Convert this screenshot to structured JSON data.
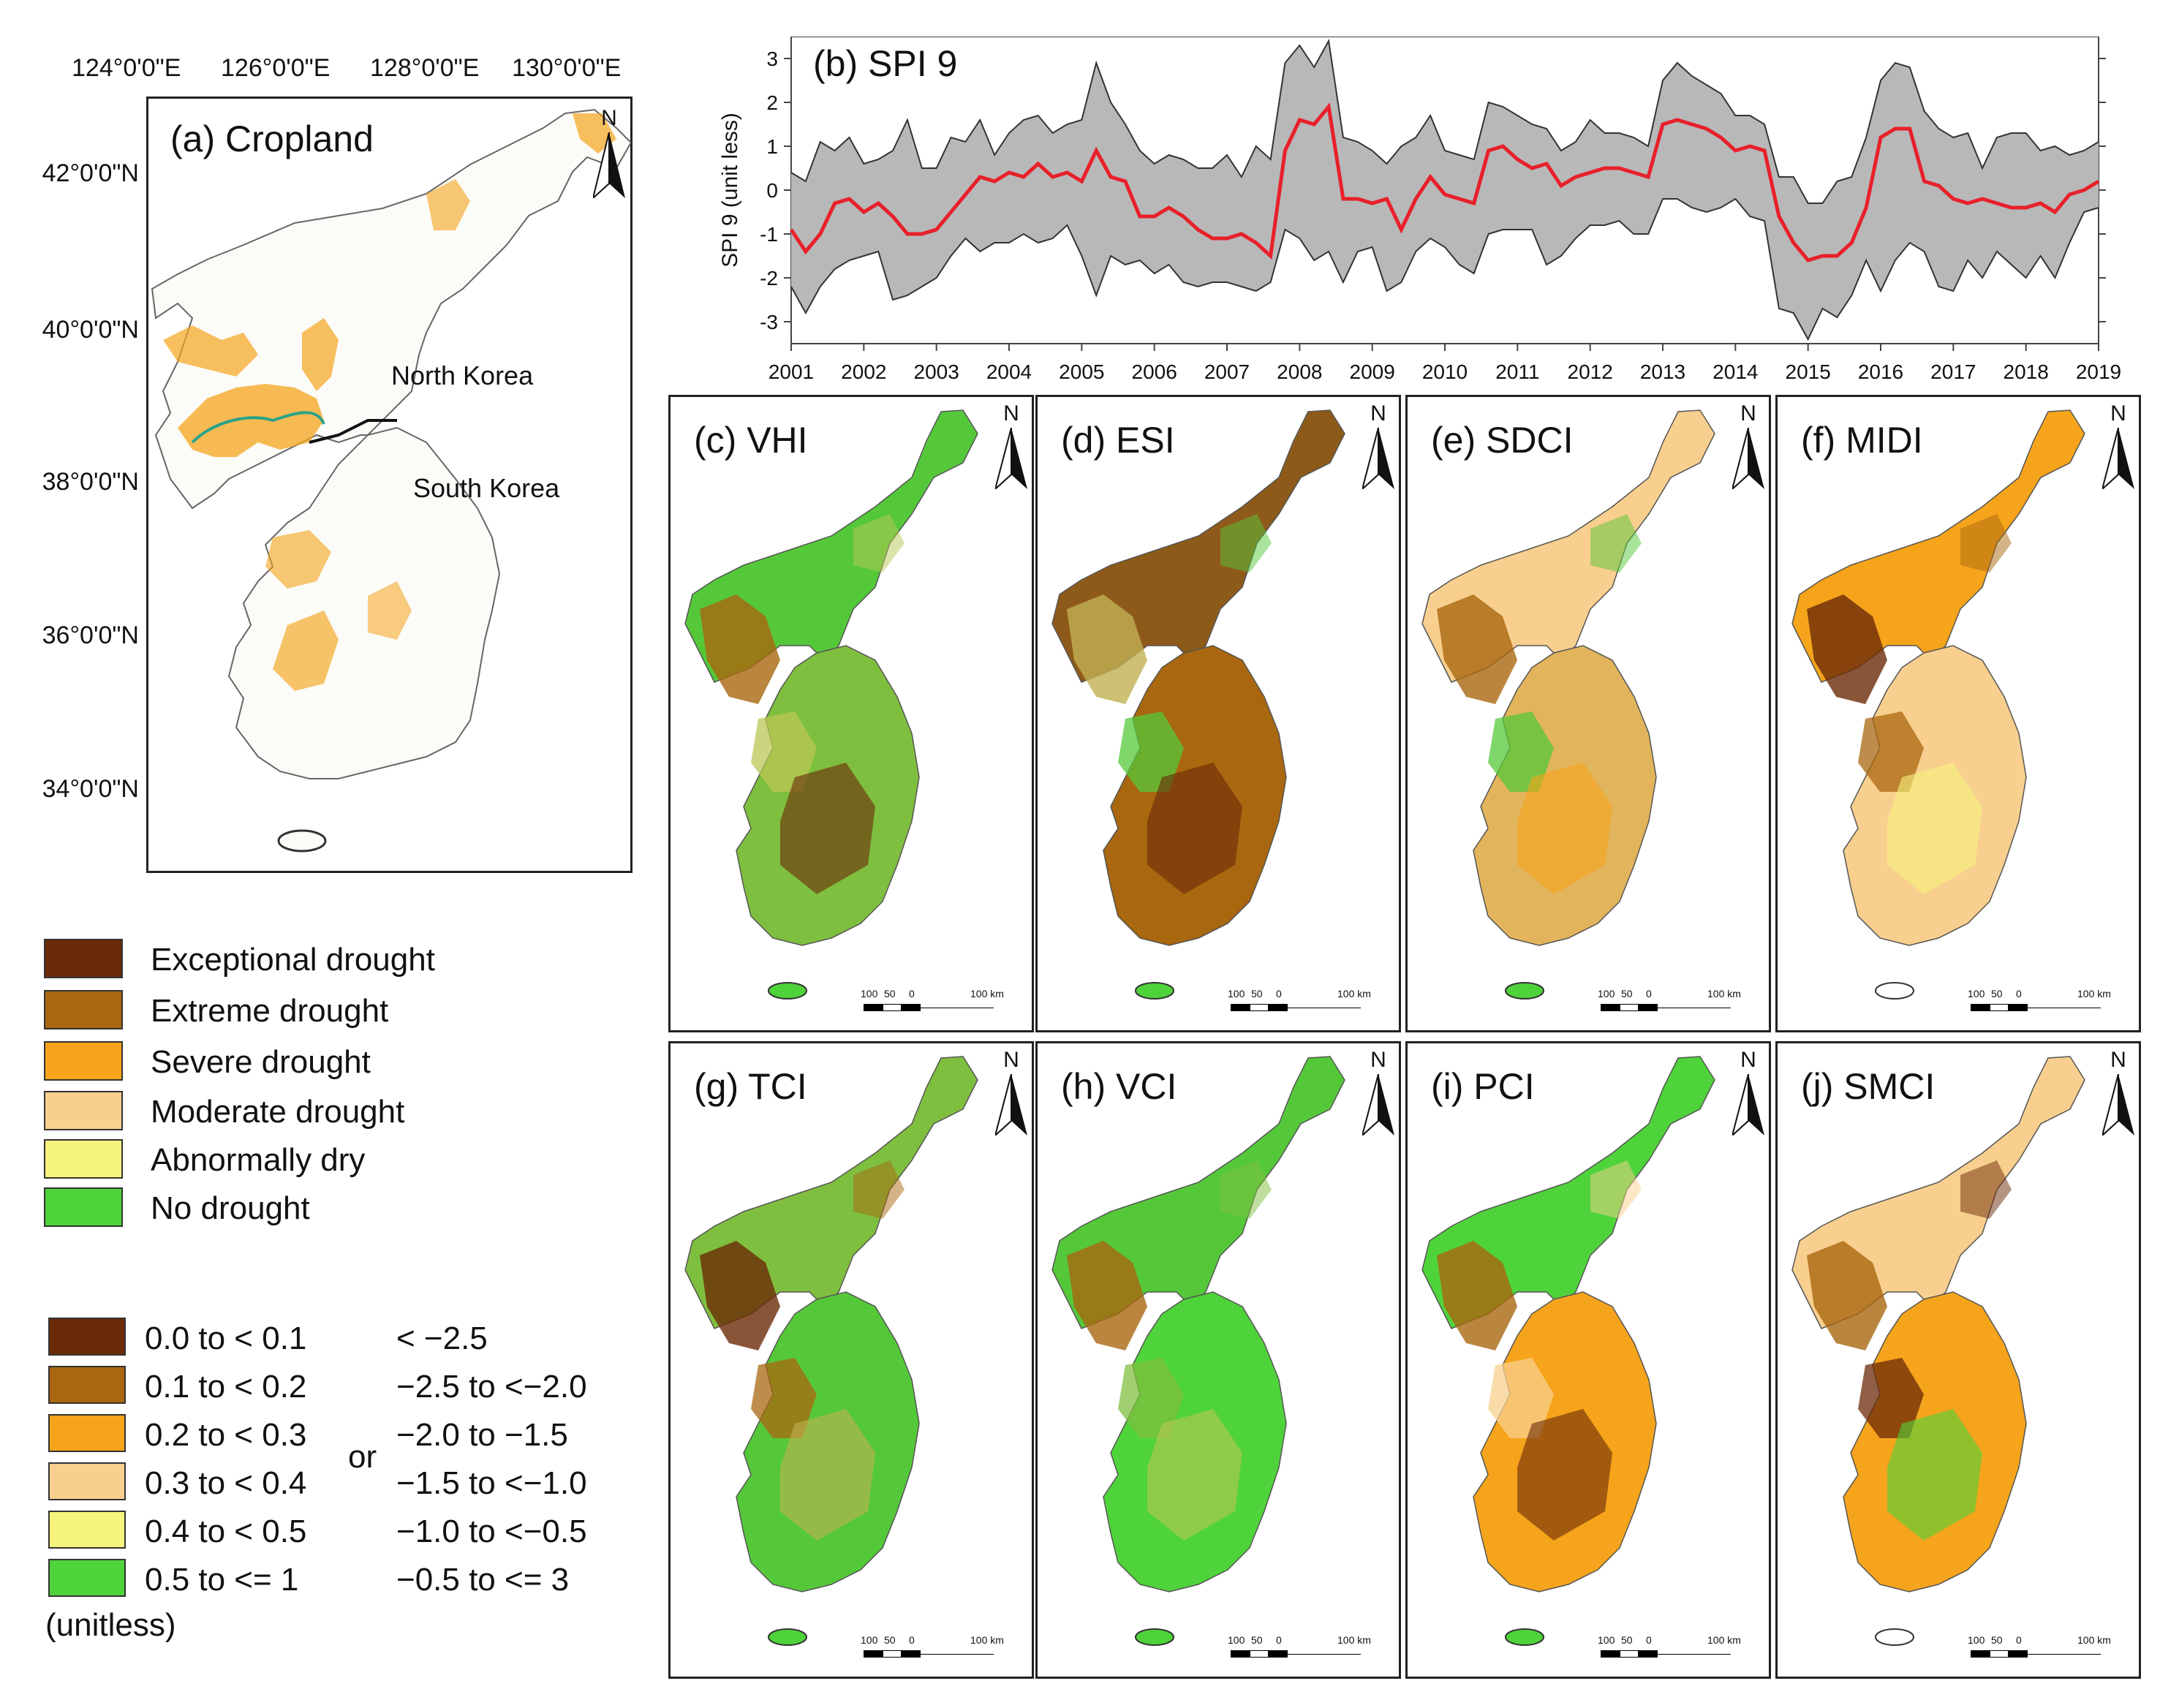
{
  "panel_a": {
    "title": "(a) Cropland",
    "lon_labels": [
      "124°0'0\"E",
      "126°0'0\"E",
      "128°0'0\"E",
      "130°0'0\"E"
    ],
    "lat_labels": [
      "42°0'0\"N",
      "40°0'0\"N",
      "38°0'0\"N",
      "36°0'0\"N",
      "34°0'0\"N"
    ],
    "north_korea": "North Korea",
    "south_korea": "South Korea",
    "north_arrow": "N"
  },
  "panel_b": {
    "title": "(b) SPI 9",
    "ylabel": "SPI 9 (unit less)"
  },
  "maps": [
    {
      "title": "(c) VHI",
      "north": "N",
      "scale": [
        "100",
        "50",
        "0",
        "100 km"
      ]
    },
    {
      "title": "(d) ESI",
      "north": "N",
      "scale": [
        "100",
        "50",
        "0",
        "100 km"
      ]
    },
    {
      "title": "(e) SDCI",
      "north": "N",
      "scale": [
        "100",
        "50",
        "0",
        "100 km"
      ]
    },
    {
      "title": "(f) MIDI",
      "north": "N",
      "scale": [
        "100",
        "50",
        "0",
        "100 km"
      ]
    },
    {
      "title": "(g) TCI",
      "north": "N",
      "scale": [
        "100",
        "50",
        "0",
        "100 km"
      ]
    },
    {
      "title": "(h) VCI",
      "north": "N",
      "scale": [
        "100",
        "50",
        "0",
        "100 km"
      ]
    },
    {
      "title": "(i) PCI",
      "north": "N",
      "scale": [
        "100",
        "50",
        "0",
        "100 km"
      ]
    },
    {
      "title": "(j) SMCI",
      "north": "N",
      "scale": [
        "100",
        "50",
        "0",
        "100 km"
      ]
    }
  ],
  "legend_classes": [
    {
      "label": "Exceptional drought",
      "color": "#6b2a08"
    },
    {
      "label": "Extreme drought",
      "color": "#a9670f"
    },
    {
      "label": "Severe drought",
      "color": "#f5a41b"
    },
    {
      "label": "Moderate drought",
      "color": "#f8cf8e"
    },
    {
      "label": "Abnormally dry",
      "color": "#f7f47e"
    },
    {
      "label": "No drought",
      "color": "#4fd33a"
    }
  ],
  "legend_ranges": [
    {
      "range": "0.0 to < 0.1",
      "spi": "< −2.5",
      "color": "#6b2a08"
    },
    {
      "range": "0.1 to < 0.2",
      "spi": "−2.5 to <−2.0",
      "color": "#a9670f"
    },
    {
      "range": "0.2 to < 0.3",
      "spi": "−2.0 to −1.5",
      "color": "#f5a41b"
    },
    {
      "range": "0.3 to < 0.4",
      "spi": "−1.5 to <−1.0",
      "color": "#f8cf8e"
    },
    {
      "range": "0.4 to < 0.5",
      "spi": "−1.0 to <−0.5",
      "color": "#f7f47e"
    },
    {
      "range": "0.5 to <= 1",
      "spi": "−0.5 to <= 3",
      "color": "#4fd33a"
    }
  ],
  "legend_or": "or",
  "legend_unitless": "(unitless)",
  "chart_data": {
    "type": "line",
    "title": "(b) SPI 9",
    "xlabel": "",
    "ylabel": "SPI 9 (unit less)",
    "xlim": [
      2001,
      2019
    ],
    "ylim": [
      -3.5,
      3.5
    ],
    "xticks": [
      "2001",
      "2002",
      "2003",
      "2004",
      "2005",
      "2006",
      "2007",
      "2008",
      "2009",
      "2010",
      "2011",
      "2012",
      "2013",
      "2014",
      "2015",
      "2016",
      "2017",
      "2018",
      "2019"
    ],
    "yticks": [
      "3",
      "2",
      "1",
      "0",
      "-1",
      "-2",
      "-3"
    ],
    "series": [
      {
        "name": "mean",
        "color": "#e8202a",
        "x": [
          2001.0,
          2001.2,
          2001.4,
          2001.6,
          2001.8,
          2002.0,
          2002.2,
          2002.4,
          2002.6,
          2002.8,
          2003.0,
          2003.2,
          2003.4,
          2003.6,
          2003.8,
          2004.0,
          2004.2,
          2004.4,
          2004.6,
          2004.8,
          2005.0,
          2005.2,
          2005.4,
          2005.6,
          2005.8,
          2006.0,
          2006.2,
          2006.4,
          2006.6,
          2006.8,
          2007.0,
          2007.2,
          2007.4,
          2007.6,
          2007.8,
          2008.0,
          2008.2,
          2008.4,
          2008.6,
          2008.8,
          2009.0,
          2009.2,
          2009.4,
          2009.6,
          2009.8,
          2010.0,
          2010.2,
          2010.4,
          2010.6,
          2010.8,
          2011.0,
          2011.2,
          2011.4,
          2011.6,
          2011.8,
          2012.0,
          2012.2,
          2012.4,
          2012.6,
          2012.8,
          2013.0,
          2013.2,
          2013.4,
          2013.6,
          2013.8,
          2014.0,
          2014.2,
          2014.4,
          2014.6,
          2014.8,
          2015.0,
          2015.2,
          2015.4,
          2015.6,
          2015.8,
          2016.0,
          2016.2,
          2016.4,
          2016.6,
          2016.8,
          2017.0,
          2017.2,
          2017.4,
          2017.6,
          2017.8,
          2018.0,
          2018.2,
          2018.4,
          2018.6,
          2018.8,
          2019.0
        ],
        "y": [
          -0.9,
          -1.4,
          -1.0,
          -0.3,
          -0.2,
          -0.5,
          -0.3,
          -0.6,
          -1.0,
          -1.0,
          -0.9,
          -0.5,
          -0.1,
          0.3,
          0.2,
          0.4,
          0.3,
          0.6,
          0.3,
          0.4,
          0.2,
          0.9,
          0.3,
          0.2,
          -0.6,
          -0.6,
          -0.4,
          -0.6,
          -0.9,
          -1.1,
          -1.1,
          -1.0,
          -1.2,
          -1.5,
          0.9,
          1.6,
          1.5,
          1.9,
          -0.2,
          -0.2,
          -0.3,
          -0.2,
          -0.9,
          -0.2,
          0.3,
          -0.1,
          -0.2,
          -0.3,
          0.9,
          1.0,
          0.7,
          0.5,
          0.6,
          0.1,
          0.3,
          0.4,
          0.5,
          0.5,
          0.4,
          0.3,
          1.5,
          1.6,
          1.5,
          1.4,
          1.2,
          0.9,
          1.0,
          0.9,
          -0.6,
          -1.2,
          -1.6,
          -1.5,
          -1.5,
          -1.2,
          -0.4,
          1.2,
          1.4,
          1.4,
          0.2,
          0.1,
          -0.2,
          -0.3,
          -0.2,
          -0.3,
          -0.4,
          -0.4,
          -0.3,
          -0.5,
          -0.1,
          0.0,
          0.2
        ]
      },
      {
        "name": "max",
        "color": "#333333",
        "x": [
          2001.0,
          2001.2,
          2001.4,
          2001.6,
          2001.8,
          2002.0,
          2002.2,
          2002.4,
          2002.6,
          2002.8,
          2003.0,
          2003.2,
          2003.4,
          2003.6,
          2003.8,
          2004.0,
          2004.2,
          2004.4,
          2004.6,
          2004.8,
          2005.0,
          2005.2,
          2005.4,
          2005.6,
          2005.8,
          2006.0,
          2006.2,
          2006.4,
          2006.6,
          2006.8,
          2007.0,
          2007.2,
          2007.4,
          2007.6,
          2007.8,
          2008.0,
          2008.2,
          2008.4,
          2008.6,
          2008.8,
          2009.0,
          2009.2,
          2009.4,
          2009.6,
          2009.8,
          2010.0,
          2010.2,
          2010.4,
          2010.6,
          2010.8,
          2011.0,
          2011.2,
          2011.4,
          2011.6,
          2011.8,
          2012.0,
          2012.2,
          2012.4,
          2012.6,
          2012.8,
          2013.0,
          2013.2,
          2013.4,
          2013.6,
          2013.8,
          2014.0,
          2014.2,
          2014.4,
          2014.6,
          2014.8,
          2015.0,
          2015.2,
          2015.4,
          2015.6,
          2015.8,
          2016.0,
          2016.2,
          2016.4,
          2016.6,
          2016.8,
          2017.0,
          2017.2,
          2017.4,
          2017.6,
          2017.8,
          2018.0,
          2018.2,
          2018.4,
          2018.6,
          2018.8,
          2019.0
        ],
        "y": [
          0.4,
          0.2,
          1.1,
          0.9,
          1.2,
          0.6,
          0.7,
          0.9,
          1.6,
          0.5,
          0.5,
          1.2,
          1.1,
          1.6,
          0.8,
          1.3,
          1.6,
          1.7,
          1.3,
          1.5,
          1.6,
          2.9,
          2.0,
          1.5,
          0.9,
          0.6,
          0.8,
          0.7,
          0.5,
          0.5,
          0.8,
          0.3,
          1.0,
          0.7,
          2.9,
          3.3,
          2.8,
          3.4,
          1.2,
          1.1,
          0.9,
          0.6,
          1.0,
          1.2,
          1.7,
          0.9,
          0.8,
          0.7,
          2.0,
          1.9,
          1.7,
          1.5,
          1.4,
          0.9,
          1.1,
          1.6,
          1.3,
          1.3,
          1.2,
          1.0,
          2.5,
          2.9,
          2.6,
          2.4,
          2.2,
          1.7,
          1.7,
          1.5,
          0.3,
          0.3,
          -0.3,
          -0.3,
          0.2,
          0.3,
          1.2,
          2.5,
          2.9,
          2.8,
          1.8,
          1.4,
          1.2,
          1.3,
          0.5,
          1.2,
          1.3,
          1.3,
          0.9,
          1.0,
          0.8,
          0.9,
          1.1
        ]
      },
      {
        "name": "min",
        "color": "#333333",
        "x": [
          2001.0,
          2001.2,
          2001.4,
          2001.6,
          2001.8,
          2002.0,
          2002.2,
          2002.4,
          2002.6,
          2002.8,
          2003.0,
          2003.2,
          2003.4,
          2003.6,
          2003.8,
          2004.0,
          2004.2,
          2004.4,
          2004.6,
          2004.8,
          2005.0,
          2005.2,
          2005.4,
          2005.6,
          2005.8,
          2006.0,
          2006.2,
          2006.4,
          2006.6,
          2006.8,
          2007.0,
          2007.2,
          2007.4,
          2007.6,
          2007.8,
          2008.0,
          2008.2,
          2008.4,
          2008.6,
          2008.8,
          2009.0,
          2009.2,
          2009.4,
          2009.6,
          2009.8,
          2010.0,
          2010.2,
          2010.4,
          2010.6,
          2010.8,
          2011.0,
          2011.2,
          2011.4,
          2011.6,
          2011.8,
          2012.0,
          2012.2,
          2012.4,
          2012.6,
          2012.8,
          2013.0,
          2013.2,
          2013.4,
          2013.6,
          2013.8,
          2014.0,
          2014.2,
          2014.4,
          2014.6,
          2014.8,
          2015.0,
          2015.2,
          2015.4,
          2015.6,
          2015.8,
          2016.0,
          2016.2,
          2016.4,
          2016.6,
          2016.8,
          2017.0,
          2017.2,
          2017.4,
          2017.6,
          2017.8,
          2018.0,
          2018.2,
          2018.4,
          2018.6,
          2018.8,
          2019.0
        ],
        "y": [
          -2.2,
          -2.8,
          -2.2,
          -1.8,
          -1.6,
          -1.5,
          -1.4,
          -2.5,
          -2.4,
          -2.2,
          -2.0,
          -1.5,
          -1.1,
          -1.4,
          -1.2,
          -1.2,
          -1.0,
          -1.2,
          -1.1,
          -0.8,
          -1.5,
          -2.4,
          -1.5,
          -1.7,
          -1.6,
          -1.9,
          -1.7,
          -2.1,
          -2.2,
          -2.1,
          -2.1,
          -2.2,
          -2.3,
          -2.1,
          -0.9,
          -1.1,
          -1.6,
          -1.4,
          -2.1,
          -1.4,
          -1.3,
          -2.3,
          -2.1,
          -1.4,
          -1.1,
          -1.3,
          -1.7,
          -1.9,
          -1.0,
          -0.9,
          -0.9,
          -0.9,
          -1.7,
          -1.5,
          -1.1,
          -0.8,
          -0.8,
          -0.7,
          -1.0,
          -1.0,
          -0.2,
          -0.2,
          -0.4,
          -0.5,
          -0.4,
          -0.2,
          -0.6,
          -0.7,
          -2.7,
          -2.8,
          -3.4,
          -2.7,
          -2.9,
          -2.4,
          -1.6,
          -2.3,
          -1.6,
          -1.2,
          -1.4,
          -2.2,
          -2.3,
          -1.6,
          -2.0,
          -1.4,
          -1.7,
          -2.0,
          -1.5,
          -2.0,
          -1.2,
          -0.5,
          -0.4
        ]
      }
    ]
  }
}
